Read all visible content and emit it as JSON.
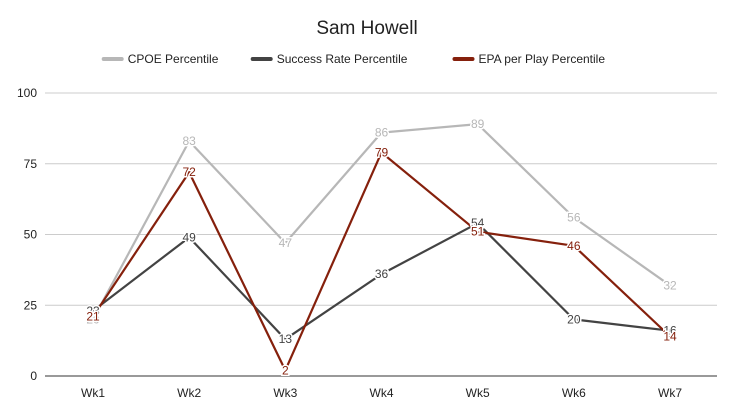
{
  "chart_data": {
    "type": "line",
    "title": "Sam Howell",
    "categories": [
      "Wk1",
      "Wk2",
      "Wk3",
      "Wk4",
      "Wk5",
      "Wk6",
      "Wk7"
    ],
    "ylim": [
      0,
      100
    ],
    "yticks": [
      0,
      25,
      50,
      75,
      100
    ],
    "grid": true,
    "legend_position": "top",
    "series": [
      {
        "name": "CPOE Percentile",
        "color": "#b7b7b7",
        "values": [
          20,
          83,
          47,
          86,
          89,
          56,
          32
        ]
      },
      {
        "name": "Success Rate Percentile",
        "color": "#434343",
        "values": [
          23,
          49,
          13,
          36,
          54,
          20,
          16
        ]
      },
      {
        "name": "EPA per Play Percentile",
        "color": "#85200c",
        "values": [
          21,
          72,
          2,
          79,
          51,
          46,
          14
        ]
      }
    ]
  }
}
